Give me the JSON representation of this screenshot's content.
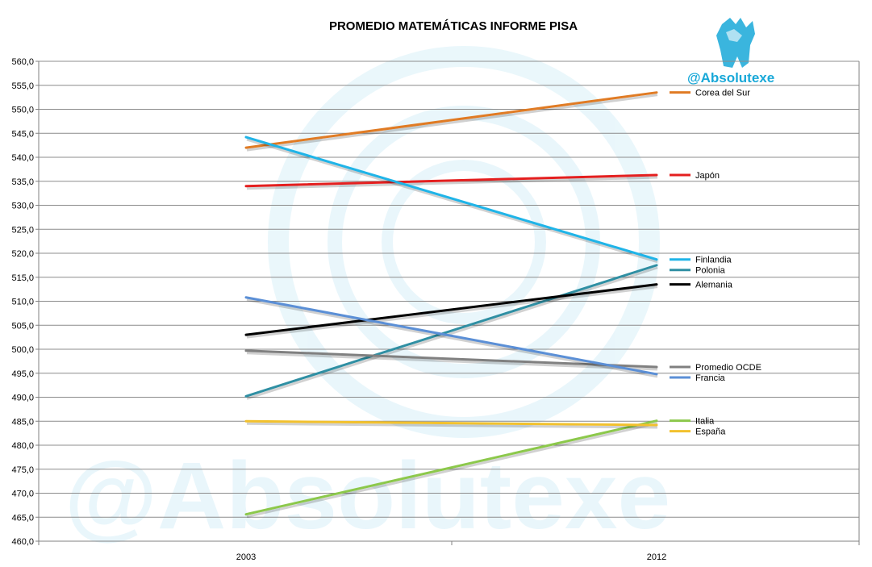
{
  "chart_data": {
    "type": "line",
    "title": "PROMEDIO MATEMÁTICAS INFORME PISA",
    "xlabel": "",
    "ylabel": "",
    "categories": [
      "2003",
      "2012"
    ],
    "ylim": [
      460,
      560
    ],
    "ytick_step": 5,
    "ytick_labels": [
      "460,0",
      "465,0",
      "470,0",
      "475,0",
      "480,0",
      "485,0",
      "490,0",
      "495,0",
      "500,0",
      "505,0",
      "510,0",
      "515,0",
      "520,0",
      "525,0",
      "530,0",
      "535,0",
      "540,0",
      "545,0",
      "550,0",
      "555,0",
      "560,0"
    ],
    "grid": "horizontal",
    "legend": "right-end-of-lines",
    "series": [
      {
        "name": "Corea del Sur",
        "values": [
          542.0,
          553.5
        ],
        "color": "#e07b24"
      },
      {
        "name": "Japón",
        "values": [
          534.0,
          536.3
        ],
        "color": "#e41f1f"
      },
      {
        "name": "Finlandia",
        "values": [
          544.2,
          518.7
        ],
        "color": "#1fb4e8"
      },
      {
        "name": "Polonia",
        "values": [
          490.2,
          517.5
        ],
        "color": "#2f8fa3"
      },
      {
        "name": "Alemania",
        "values": [
          503.0,
          513.5
        ],
        "color": "#000000"
      },
      {
        "name": "Promedio OCDE",
        "values": [
          499.7,
          496.3
        ],
        "color": "#808080"
      },
      {
        "name": "Francia",
        "values": [
          510.8,
          494.8
        ],
        "color": "#5b8fd6"
      },
      {
        "name": "Italia",
        "values": [
          465.6,
          485.1
        ],
        "color": "#8cc84b"
      },
      {
        "name": "España",
        "values": [
          485.0,
          484.2
        ],
        "color": "#f2c12e"
      }
    ]
  },
  "branding": {
    "handle": "@Absolutexe",
    "watermark": "@Absolutexe",
    "logo_icon": "griffin-logo-icon",
    "brand_color": "#18a8d8"
  }
}
